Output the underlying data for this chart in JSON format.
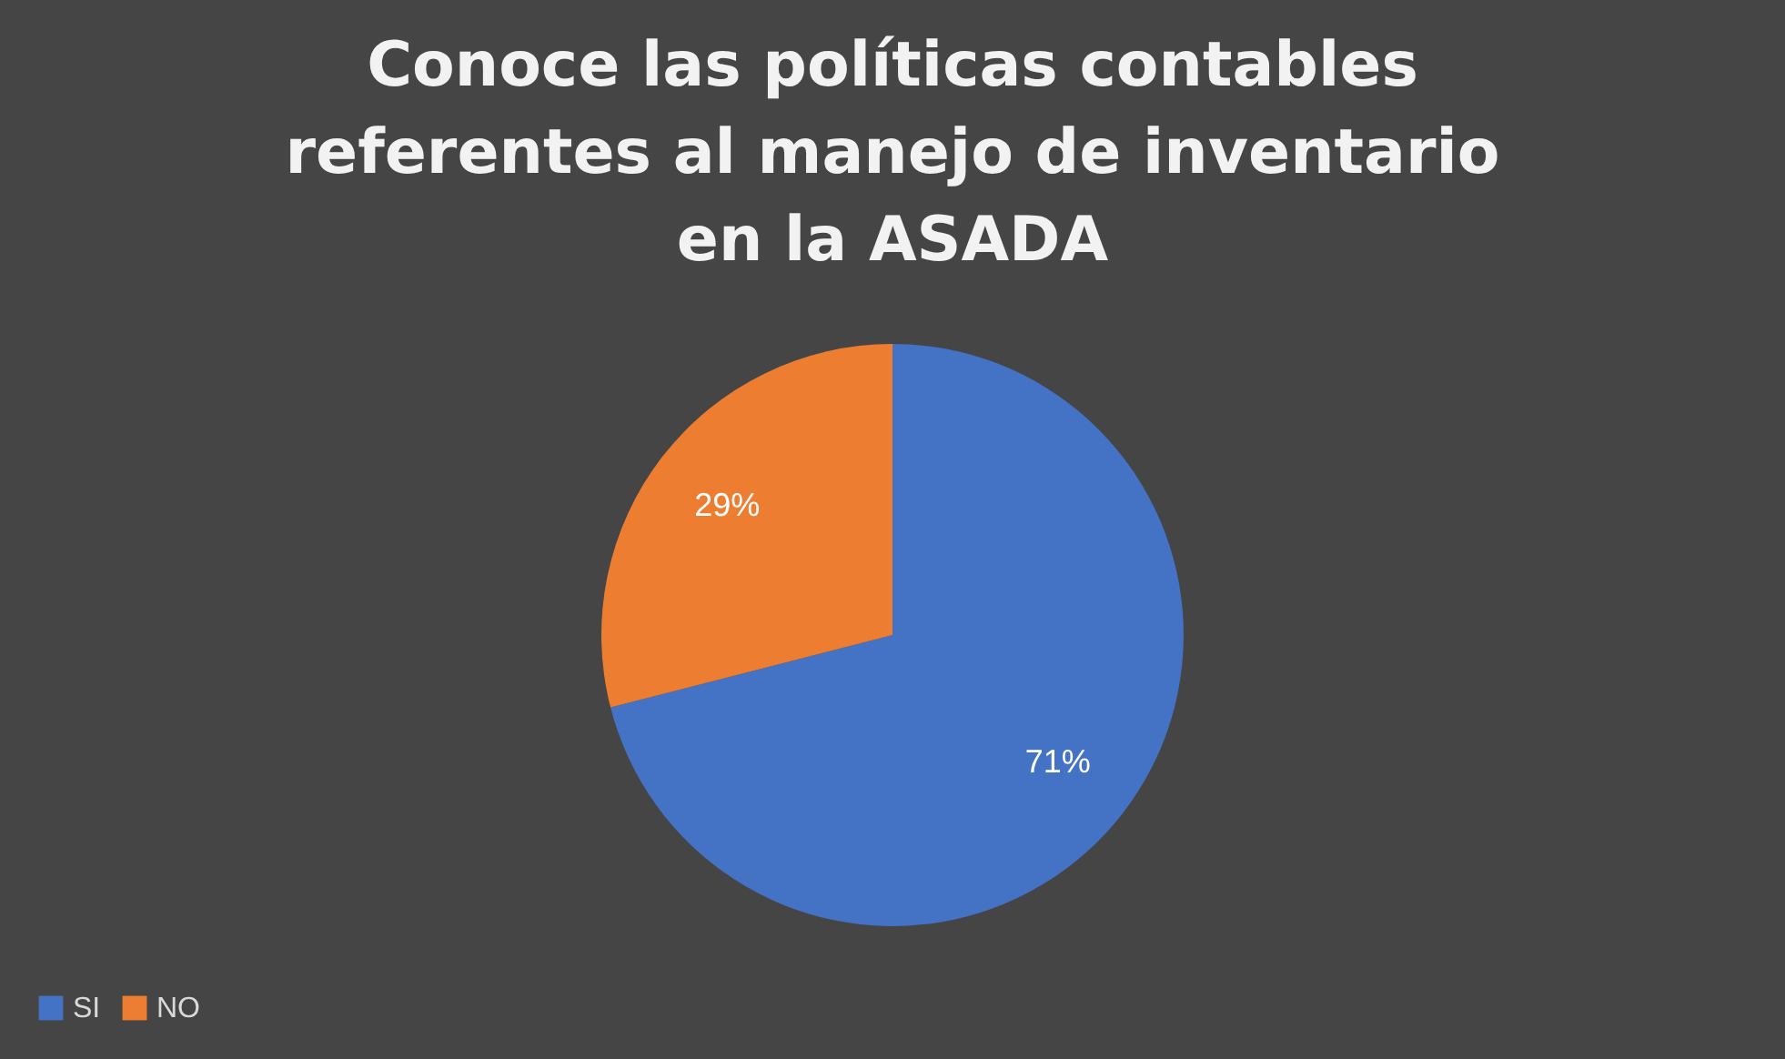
{
  "chart_data": {
    "type": "pie",
    "title": "Conoce las políticas contables referentes al manejo de inventario en la ASADA",
    "categories": [
      "SI",
      "NO"
    ],
    "values": [
      71,
      29
    ],
    "colors": [
      "#4472c4",
      "#ed7d31"
    ],
    "value_labels": [
      "71%",
      "29%"
    ],
    "legend": "bottom"
  }
}
